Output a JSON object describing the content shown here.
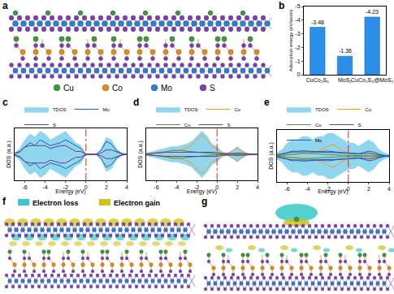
{
  "panels": {
    "a": {
      "label": "a",
      "legend": [
        {
          "name": "Cu",
          "color": "#3c9a3c"
        },
        {
          "name": "Co",
          "color": "#e88a1a"
        },
        {
          "name": "Mo",
          "color": "#2b7fd1"
        },
        {
          "name": "S",
          "color": "#7b3fb5"
        }
      ]
    },
    "f": {
      "label": "f",
      "legend": [
        {
          "name": "Electron loss",
          "color": "#36c9c6"
        },
        {
          "name": "Electron gain",
          "color": "#cfc21b"
        }
      ]
    },
    "g": {
      "label": "g"
    }
  },
  "chart_data": [
    {
      "label": "b",
      "type": "bar",
      "categories": [
        "CuCo₂S₄",
        "MoS₂",
        "CuCo₂S₄@MoS₂"
      ],
      "values": [
        -3.48,
        -1.36,
        -4.23
      ],
      "color": "#2a8fe8",
      "y_label": "Adsorption energy (eV/atom)",
      "ylim": [
        0,
        -5
      ],
      "yticks": [
        0,
        -1,
        -2,
        -3,
        -4,
        -5
      ],
      "data_labels": true,
      "grid": false
    },
    {
      "label": "c",
      "type": "line",
      "x_label": "Energy (eV)",
      "y_label": "DOS (a.u.)",
      "xlim": [
        -7,
        4
      ],
      "xticks": [
        -6,
        -4,
        -2,
        0,
        2,
        4
      ],
      "ylim": [
        -9,
        9
      ],
      "tick_labels": "x",
      "fermi_level": 0,
      "legend": "top",
      "grid": false,
      "x": [
        -7,
        -6.5,
        -6,
        -5.5,
        -5,
        -4.5,
        -4,
        -3.5,
        -3,
        -2.5,
        -2,
        -1.5,
        -1,
        -0.5,
        0,
        0.5,
        1,
        1.5,
        2,
        2.5,
        3,
        3.5,
        4
      ],
      "series": [
        {
          "name": "TDOS",
          "type": "area",
          "color": "#8fd6ee",
          "values": [
            0.5,
            2,
            5,
            7,
            6,
            8,
            7,
            5,
            6,
            7,
            8,
            6,
            4,
            3,
            0,
            0,
            0,
            2,
            6,
            5,
            2,
            0.5,
            0
          ],
          "values_down": [
            -0.5,
            -2,
            -5,
            -7,
            -6,
            -8,
            -7,
            -5,
            -6,
            -7,
            -8,
            -6,
            -4,
            -3,
            0,
            0,
            0,
            -2,
            -6,
            -5,
            -2,
            -0.5,
            0
          ]
        },
        {
          "name": "Mo",
          "type": "line",
          "color": "#1f5fbf",
          "values": [
            0.3,
            1,
            2.5,
            4,
            3,
            5,
            4,
            3,
            3.5,
            4,
            5,
            4,
            3,
            2,
            0,
            0,
            0,
            1.5,
            4.5,
            3.5,
            1.2,
            0.3,
            0
          ],
          "values_down": [
            -0.3,
            -1,
            -2.5,
            -4,
            -3,
            -5,
            -4,
            -3,
            -3.5,
            -4,
            -5,
            -4,
            -3,
            -2,
            0,
            0,
            0,
            -1.5,
            -4.5,
            -3.5,
            -1.2,
            -0.3,
            0
          ]
        },
        {
          "name": "S",
          "type": "line",
          "color": "#6a3d9a",
          "values": [
            0.2,
            0.8,
            2.5,
            3,
            3,
            3,
            3,
            2,
            2.5,
            3,
            3,
            2,
            1,
            1,
            0,
            0,
            0,
            0.5,
            1.5,
            1.5,
            0.8,
            0.2,
            0
          ],
          "values_down": [
            -0.2,
            -0.8,
            -2.5,
            -3,
            -3,
            -3,
            -3,
            -2,
            -2.5,
            -3,
            -3,
            -2,
            -1,
            -1,
            0,
            0,
            0,
            -0.5,
            -1.5,
            -1.5,
            -0.8,
            -0.2,
            0
          ]
        }
      ]
    },
    {
      "label": "d",
      "type": "line",
      "x_label": "Energy (eV)",
      "y_label": "DOS (a.u.)",
      "xlim": [
        -7,
        4
      ],
      "xticks": [
        -6,
        -4,
        -2,
        0,
        2,
        4
      ],
      "ylim": [
        -10,
        10
      ],
      "tick_labels": "x",
      "fermi_level": 0,
      "legend": "top",
      "grid": false,
      "x": [
        -7,
        -6.5,
        -6,
        -5.5,
        -5,
        -4.5,
        -4,
        -3.5,
        -3,
        -2.5,
        -2,
        -1.5,
        -1,
        -0.5,
        0,
        0.5,
        1,
        1.5,
        2,
        2.5,
        3,
        3.5,
        4
      ],
      "series": [
        {
          "name": "TDOS",
          "type": "area",
          "color": "#8fd6ee",
          "values": [
            0.5,
            1,
            1.5,
            2,
            2.5,
            3,
            3,
            3.5,
            4,
            5,
            7,
            9,
            7,
            4,
            3,
            1,
            0.5,
            1.5,
            3,
            1.5,
            0.3,
            0,
            0
          ],
          "values_down": [
            -0.5,
            -1,
            -1.5,
            -2,
            -2.5,
            -3,
            -3,
            -3.5,
            -4,
            -5,
            -7,
            -9,
            -7,
            -4,
            -3,
            -1,
            -0.5,
            -1.5,
            -3,
            -1.5,
            -0.3,
            0,
            0
          ]
        },
        {
          "name": "Co",
          "type": "line",
          "color": "#f39c12",
          "values": [
            0.1,
            0.3,
            0.5,
            0.8,
            1,
            1.2,
            1.5,
            1.8,
            2.5,
            3.5,
            5.5,
            7.5,
            5.5,
            3,
            2,
            0.5,
            0.3,
            1.2,
            2.5,
            1,
            0.2,
            0,
            0
          ],
          "values_down": [
            -0.1,
            -0.3,
            -0.5,
            -0.8,
            -1,
            -1.2,
            -1.5,
            -1.8,
            -2.5,
            -3.5,
            -5.5,
            -7.5,
            -5.5,
            -3,
            -2,
            -0.5,
            -0.3,
            -1.2,
            -2.5,
            -1,
            -0.2,
            0,
            0
          ]
        },
        {
          "name": "Cu",
          "type": "line",
          "color": "#4a9a3a",
          "values": [
            0.1,
            0.3,
            0.5,
            0.8,
            1,
            1.5,
            1.5,
            1.5,
            1.2,
            1,
            0.8,
            0.5,
            0.4,
            0.3,
            0.2,
            0.1,
            0.1,
            0.1,
            0.1,
            0.1,
            0,
            0,
            0
          ],
          "values_down": [
            -0.1,
            -0.3,
            -0.5,
            -0.8,
            -1,
            -1.5,
            -1.5,
            -1.5,
            -1.2,
            -1,
            -0.8,
            -0.5,
            -0.4,
            -0.3,
            -0.2,
            -0.1,
            -0.1,
            -0.1,
            -0.1,
            -0.1,
            0,
            0,
            0
          ]
        },
        {
          "name": "S",
          "type": "line",
          "color": "#6a3d9a",
          "values": [
            0.2,
            0.4,
            0.6,
            0.6,
            0.8,
            0.8,
            0.8,
            0.8,
            0.9,
            1,
            1,
            1,
            1,
            0.8,
            0.8,
            0.3,
            0.2,
            0.3,
            0.5,
            0.4,
            0.1,
            0,
            0
          ],
          "values_down": [
            -0.2,
            -0.4,
            -0.6,
            -0.6,
            -0.8,
            -0.8,
            -0.8,
            -0.8,
            -0.9,
            -1,
            -1,
            -1,
            -1,
            -0.8,
            -0.8,
            -0.3,
            -0.2,
            -0.3,
            -0.5,
            -0.4,
            -0.1,
            0,
            0
          ]
        }
      ]
    },
    {
      "label": "e",
      "type": "line",
      "x_label": "Energy (eV)",
      "y_label": "DOS (a.u.)",
      "xlim": [
        -7,
        4
      ],
      "xticks": [
        -6,
        -4,
        -2,
        0,
        2,
        4
      ],
      "ylim": [
        -8,
        8
      ],
      "tick_labels": "x",
      "fermi_level": 0,
      "legend": "top",
      "grid": false,
      "x": [
        -7,
        -6.5,
        -6,
        -5.5,
        -5,
        -4.5,
        -4,
        -3.5,
        -3,
        -2.5,
        -2,
        -1.5,
        -1,
        -0.5,
        0,
        0.5,
        1,
        1.5,
        2,
        2.5,
        3,
        3.5,
        4
      ],
      "series": [
        {
          "name": "TDOS",
          "type": "area",
          "color": "#8fd6ee",
          "values": [
            1,
            2,
            4,
            5,
            5,
            6,
            6,
            5,
            6,
            6,
            7,
            7,
            6,
            5,
            4,
            4,
            3,
            4,
            5,
            4,
            2,
            1,
            0.5
          ],
          "values_down": [
            -1,
            -2,
            -4,
            -5,
            -5,
            -6,
            -6,
            -5,
            -6,
            -6,
            -7,
            -7,
            -6,
            -5,
            -4,
            -4,
            -3,
            -4,
            -5,
            -4,
            -2,
            -1,
            -0.5
          ]
        },
        {
          "name": "Co",
          "type": "line",
          "color": "#f39c12",
          "values": [
            0.1,
            0.2,
            0.4,
            0.5,
            0.6,
            0.8,
            0.8,
            1,
            1.5,
            2,
            3,
            3.5,
            2.5,
            1.5,
            1,
            0.8,
            0.6,
            1,
            1.2,
            0.8,
            0.3,
            0.1,
            0
          ],
          "values_down": [
            -0.1,
            -0.2,
            -0.4,
            -0.5,
            -0.6,
            -0.8,
            -0.8,
            -1,
            -1.5,
            -2,
            -3,
            -3.5,
            -2.5,
            -1.5,
            -1,
            -0.8,
            -0.6,
            -1,
            -1.2,
            -0.8,
            -0.3,
            -0.1,
            0
          ]
        },
        {
          "name": "Cu",
          "type": "line",
          "color": "#4a9a3a",
          "values": [
            0.1,
            0.2,
            0.3,
            0.5,
            0.6,
            0.8,
            0.8,
            0.7,
            0.6,
            0.5,
            0.4,
            0.3,
            0.3,
            0.2,
            0.2,
            0.1,
            0.1,
            0.1,
            0.1,
            0.1,
            0,
            0,
            0
          ],
          "values_down": [
            -0.1,
            -0.2,
            -0.3,
            -0.5,
            -0.6,
            -0.8,
            -0.8,
            -0.7,
            -0.6,
            -0.5,
            -0.4,
            -0.3,
            -0.3,
            -0.2,
            -0.2,
            -0.1,
            -0.1,
            -0.1,
            -0.1,
            -0.1,
            0,
            0,
            0
          ]
        },
        {
          "name": "S",
          "type": "line",
          "color": "#6a3d9a",
          "values": [
            0.3,
            0.6,
            1,
            1.2,
            1.2,
            1.3,
            1.3,
            1.2,
            1.2,
            1.2,
            1.2,
            1.1,
            1,
            0.9,
            0.8,
            0.7,
            0.6,
            0.7,
            0.8,
            0.6,
            0.3,
            0.1,
            0
          ],
          "values_down": [
            -0.3,
            -0.6,
            -1,
            -1.2,
            -1.2,
            -1.3,
            -1.3,
            -1.2,
            -1.2,
            -1.2,
            -1.2,
            -1.1,
            -1,
            -0.9,
            -0.8,
            -0.7,
            -0.6,
            -0.7,
            -0.8,
            -0.6,
            -0.3,
            -0.1,
            0
          ]
        },
        {
          "name": "Mo",
          "type": "line",
          "color": "#1f5fbf",
          "values": [
            0.3,
            0.6,
            1,
            1.5,
            1.4,
            1.6,
            1.5,
            1.3,
            1.3,
            1.4,
            1.5,
            1.3,
            1.1,
            1,
            0.9,
            0.8,
            0.7,
            1,
            1.5,
            1.2,
            0.6,
            0.2,
            0
          ],
          "values_down": [
            -0.3,
            -0.6,
            -1,
            -1.5,
            -1.4,
            -1.6,
            -1.5,
            -1.3,
            -1.3,
            -1.4,
            -1.5,
            -1.3,
            -1.1,
            -1,
            -0.9,
            -0.8,
            -0.7,
            -1,
            -1.5,
            -1.2,
            -0.6,
            -0.2,
            0
          ]
        }
      ]
    }
  ]
}
